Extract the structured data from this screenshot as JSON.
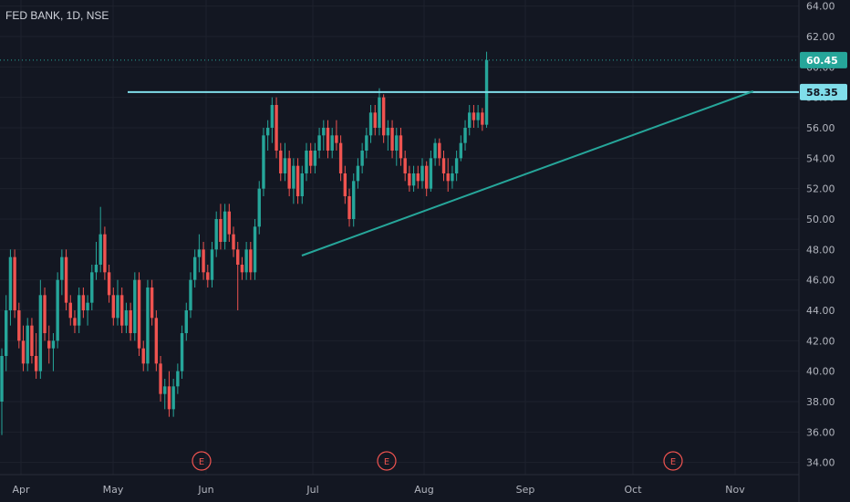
{
  "chart_data": {
    "type": "candlestick",
    "title": "FED BANK, 1D, NSE",
    "y_ticks": [
      "34.00",
      "36.00",
      "38.00",
      "40.00",
      "42.00",
      "44.00",
      "46.00",
      "48.00",
      "50.00",
      "52.00",
      "54.00",
      "56.00",
      "58.00",
      "60.00",
      "62.00",
      "64.00"
    ],
    "x_ticks": [
      "Apr",
      "May",
      "Jun",
      "Jul",
      "Aug",
      "Sep",
      "Oct",
      "Nov"
    ],
    "ylim": [
      33.2,
      64.4
    ],
    "price_labels": [
      {
        "text": "60.45",
        "value": 60.45,
        "color": "#26a69a"
      },
      {
        "text": "58.35",
        "value": 58.35,
        "color": "#80deea"
      }
    ],
    "earnings_markers": [
      {
        "label": "E",
        "date": "Jun"
      },
      {
        "label": "E",
        "date": "Aug"
      },
      {
        "label": "E",
        "date": "Oct"
      }
    ],
    "colors": {
      "up": "#26a69a",
      "down": "#ef5350",
      "resistance": "#80deea",
      "trend": "#26a69a",
      "background": "#131722",
      "grid": "#1e222d",
      "text": "#b2b5be"
    },
    "candles": [
      {
        "o": 38,
        "h": 41.5,
        "l": 35.8,
        "c": 41
      },
      {
        "o": 41,
        "h": 45,
        "l": 40,
        "c": 44
      },
      {
        "o": 44,
        "h": 48,
        "l": 43,
        "c": 47.5
      },
      {
        "o": 47.5,
        "h": 48,
        "l": 43.5,
        "c": 44
      },
      {
        "o": 44,
        "h": 44.5,
        "l": 41.5,
        "c": 42
      },
      {
        "o": 42,
        "h": 43,
        "l": 40,
        "c": 40.5
      },
      {
        "o": 40.5,
        "h": 43.5,
        "l": 40,
        "c": 43
      },
      {
        "o": 43,
        "h": 43.5,
        "l": 40.5,
        "c": 41
      },
      {
        "o": 41,
        "h": 42.5,
        "l": 39.5,
        "c": 40
      },
      {
        "o": 40,
        "h": 46,
        "l": 39.5,
        "c": 45
      },
      {
        "o": 45,
        "h": 45.5,
        "l": 42,
        "c": 42.5
      },
      {
        "o": 42,
        "h": 43,
        "l": 40.5,
        "c": 41.5
      },
      {
        "o": 41.5,
        "h": 42.5,
        "l": 40,
        "c": 42
      },
      {
        "o": 42,
        "h": 46.5,
        "l": 41.5,
        "c": 46
      },
      {
        "o": 46,
        "h": 48,
        "l": 45,
        "c": 47.5
      },
      {
        "o": 47.5,
        "h": 48,
        "l": 44,
        "c": 44.5
      },
      {
        "o": 44.5,
        "h": 45,
        "l": 43,
        "c": 43.5
      },
      {
        "o": 43.5,
        "h": 44,
        "l": 42.5,
        "c": 43
      },
      {
        "o": 43,
        "h": 45.5,
        "l": 42.5,
        "c": 45
      },
      {
        "o": 45,
        "h": 45.5,
        "l": 43.5,
        "c": 44
      },
      {
        "o": 44,
        "h": 45,
        "l": 43,
        "c": 44.5
      },
      {
        "o": 44.5,
        "h": 47,
        "l": 44,
        "c": 46.5
      },
      {
        "o": 46.5,
        "h": 48.5,
        "l": 46,
        "c": 47
      },
      {
        "o": 47,
        "h": 50.8,
        "l": 46.5,
        "c": 49
      },
      {
        "o": 49,
        "h": 49.5,
        "l": 46,
        "c": 46.5
      },
      {
        "o": 46.5,
        "h": 47,
        "l": 44.5,
        "c": 45
      },
      {
        "o": 45,
        "h": 45.5,
        "l": 43,
        "c": 43.5
      },
      {
        "o": 43.5,
        "h": 46,
        "l": 43,
        "c": 45
      },
      {
        "o": 45,
        "h": 45.5,
        "l": 42.5,
        "c": 43
      },
      {
        "o": 43,
        "h": 44.5,
        "l": 42.5,
        "c": 44
      },
      {
        "o": 44,
        "h": 44.5,
        "l": 42,
        "c": 42.5
      },
      {
        "o": 42.5,
        "h": 46.5,
        "l": 42,
        "c": 46
      },
      {
        "o": 46,
        "h": 46.5,
        "l": 41,
        "c": 41.5
      },
      {
        "o": 41.5,
        "h": 42,
        "l": 40,
        "c": 40.5
      },
      {
        "o": 40.5,
        "h": 46,
        "l": 40,
        "c": 45.5
      },
      {
        "o": 45.5,
        "h": 46,
        "l": 43,
        "c": 43.5
      },
      {
        "o": 43.5,
        "h": 44,
        "l": 40,
        "c": 40.5
      },
      {
        "o": 40.5,
        "h": 41,
        "l": 38,
        "c": 38.5
      },
      {
        "o": 38.5,
        "h": 39.5,
        "l": 37.5,
        "c": 39
      },
      {
        "o": 39,
        "h": 40,
        "l": 37,
        "c": 37.5
      },
      {
        "o": 37.5,
        "h": 39.5,
        "l": 37,
        "c": 39
      },
      {
        "o": 39,
        "h": 40.5,
        "l": 38.5,
        "c": 40
      },
      {
        "o": 40,
        "h": 43,
        "l": 39.5,
        "c": 42.5
      },
      {
        "o": 42.5,
        "h": 44.5,
        "l": 42,
        "c": 44
      },
      {
        "o": 44,
        "h": 46.5,
        "l": 43.5,
        "c": 46
      },
      {
        "o": 46,
        "h": 48,
        "l": 45.5,
        "c": 47.5
      },
      {
        "o": 47.5,
        "h": 49,
        "l": 46.5,
        "c": 48
      },
      {
        "o": 48,
        "h": 48.5,
        "l": 46,
        "c": 46.5
      },
      {
        "o": 46.5,
        "h": 47,
        "l": 45.5,
        "c": 46
      },
      {
        "o": 46,
        "h": 48.5,
        "l": 45.5,
        "c": 48
      },
      {
        "o": 48,
        "h": 50.5,
        "l": 47.5,
        "c": 50
      },
      {
        "o": 50,
        "h": 51,
        "l": 48,
        "c": 48.5
      },
      {
        "o": 48.5,
        "h": 51,
        "l": 48,
        "c": 50.5
      },
      {
        "o": 50.5,
        "h": 51,
        "l": 48.5,
        "c": 49
      },
      {
        "o": 49,
        "h": 49.5,
        "l": 47.5,
        "c": 48
      },
      {
        "o": 48,
        "h": 48.5,
        "l": 44,
        "c": 47
      },
      {
        "o": 47,
        "h": 47.5,
        "l": 46,
        "c": 46.5
      },
      {
        "o": 46.5,
        "h": 48.5,
        "l": 46,
        "c": 48
      },
      {
        "o": 48,
        "h": 48.5,
        "l": 46,
        "c": 46.5
      },
      {
        "o": 46.5,
        "h": 50,
        "l": 46,
        "c": 49.5
      },
      {
        "o": 49.5,
        "h": 52.5,
        "l": 49,
        "c": 52
      },
      {
        "o": 52,
        "h": 56,
        "l": 51.5,
        "c": 55.5
      },
      {
        "o": 55.5,
        "h": 56.5,
        "l": 54.5,
        "c": 56
      },
      {
        "o": 56,
        "h": 58,
        "l": 55,
        "c": 57.5
      },
      {
        "o": 57.5,
        "h": 58,
        "l": 54,
        "c": 54.5
      },
      {
        "o": 54.5,
        "h": 55,
        "l": 52.5,
        "c": 53
      },
      {
        "o": 53,
        "h": 55,
        "l": 52.5,
        "c": 54
      },
      {
        "o": 54,
        "h": 54.5,
        "l": 51.5,
        "c": 52
      },
      {
        "o": 52,
        "h": 54,
        "l": 51,
        "c": 53.5
      },
      {
        "o": 53.5,
        "h": 54,
        "l": 51,
        "c": 51.5
      },
      {
        "o": 51.5,
        "h": 53.5,
        "l": 51,
        "c": 53
      },
      {
        "o": 53,
        "h": 55,
        "l": 52.5,
        "c": 54.5
      },
      {
        "o": 54.5,
        "h": 55,
        "l": 53,
        "c": 53.5
      },
      {
        "o": 53.5,
        "h": 55,
        "l": 53,
        "c": 54.5
      },
      {
        "o": 54.5,
        "h": 56,
        "l": 54,
        "c": 55.5
      },
      {
        "o": 55.5,
        "h": 56.5,
        "l": 54.5,
        "c": 56
      },
      {
        "o": 56,
        "h": 56.5,
        "l": 54,
        "c": 54.5
      },
      {
        "o": 54.5,
        "h": 56,
        "l": 54,
        "c": 55.5
      },
      {
        "o": 55.5,
        "h": 56.5,
        "l": 54.5,
        "c": 55
      },
      {
        "o": 55,
        "h": 55.5,
        "l": 52.5,
        "c": 53
      },
      {
        "o": 53,
        "h": 53.5,
        "l": 51,
        "c": 51.5
      },
      {
        "o": 51.5,
        "h": 52,
        "l": 49.5,
        "c": 50
      },
      {
        "o": 50,
        "h": 53,
        "l": 49.5,
        "c": 52.5
      },
      {
        "o": 52.5,
        "h": 54,
        "l": 52,
        "c": 53.5
      },
      {
        "o": 53.5,
        "h": 55,
        "l": 53,
        "c": 54.5
      },
      {
        "o": 54.5,
        "h": 56,
        "l": 54,
        "c": 55.5
      },
      {
        "o": 55.5,
        "h": 57.5,
        "l": 55,
        "c": 57
      },
      {
        "o": 57,
        "h": 57.5,
        "l": 55.5,
        "c": 56
      },
      {
        "o": 56,
        "h": 58.6,
        "l": 55.5,
        "c": 58
      },
      {
        "o": 58,
        "h": 58.2,
        "l": 55,
        "c": 55.5
      },
      {
        "o": 55.5,
        "h": 56.5,
        "l": 54.5,
        "c": 56
      },
      {
        "o": 56,
        "h": 56.5,
        "l": 54,
        "c": 54.5
      },
      {
        "o": 54.5,
        "h": 56,
        "l": 53.5,
        "c": 55.5
      },
      {
        "o": 55.5,
        "h": 56,
        "l": 53.5,
        "c": 54
      },
      {
        "o": 54,
        "h": 54.5,
        "l": 52.5,
        "c": 53
      },
      {
        "o": 53,
        "h": 53.5,
        "l": 51.8,
        "c": 52.2
      },
      {
        "o": 52.2,
        "h": 53.5,
        "l": 51.8,
        "c": 53
      },
      {
        "o": 53,
        "h": 53.5,
        "l": 52,
        "c": 52.5
      },
      {
        "o": 52.5,
        "h": 54,
        "l": 52,
        "c": 53.5
      },
      {
        "o": 53.5,
        "h": 53.8,
        "l": 51.5,
        "c": 52
      },
      {
        "o": 52,
        "h": 54.5,
        "l": 51.8,
        "c": 54
      },
      {
        "o": 54,
        "h": 55.3,
        "l": 53.5,
        "c": 55
      },
      {
        "o": 55,
        "h": 55.3,
        "l": 53.5,
        "c": 54
      },
      {
        "o": 54,
        "h": 54.5,
        "l": 52.5,
        "c": 53
      },
      {
        "o": 53,
        "h": 54,
        "l": 51.8,
        "c": 52.5
      },
      {
        "o": 52.5,
        "h": 53.5,
        "l": 52,
        "c": 53
      },
      {
        "o": 53,
        "h": 54.5,
        "l": 52.5,
        "c": 54
      },
      {
        "o": 54,
        "h": 55.5,
        "l": 53.8,
        "c": 55
      },
      {
        "o": 55,
        "h": 56.5,
        "l": 54.5,
        "c": 56
      },
      {
        "o": 56,
        "h": 57.5,
        "l": 55.5,
        "c": 57
      },
      {
        "o": 57,
        "h": 57.5,
        "l": 56,
        "c": 56.5
      },
      {
        "o": 56.5,
        "h": 57.5,
        "l": 56,
        "c": 57
      },
      {
        "o": 57,
        "h": 57.3,
        "l": 55.8,
        "c": 56.2
      },
      {
        "o": 56.2,
        "h": 61,
        "l": 56,
        "c": 60.45
      }
    ],
    "resistance": {
      "value": 58.35
    },
    "trendline": {
      "from": {
        "index": 61,
        "price": 47.6
      },
      "to": {
        "index": 173,
        "price": 58.4
      }
    }
  }
}
